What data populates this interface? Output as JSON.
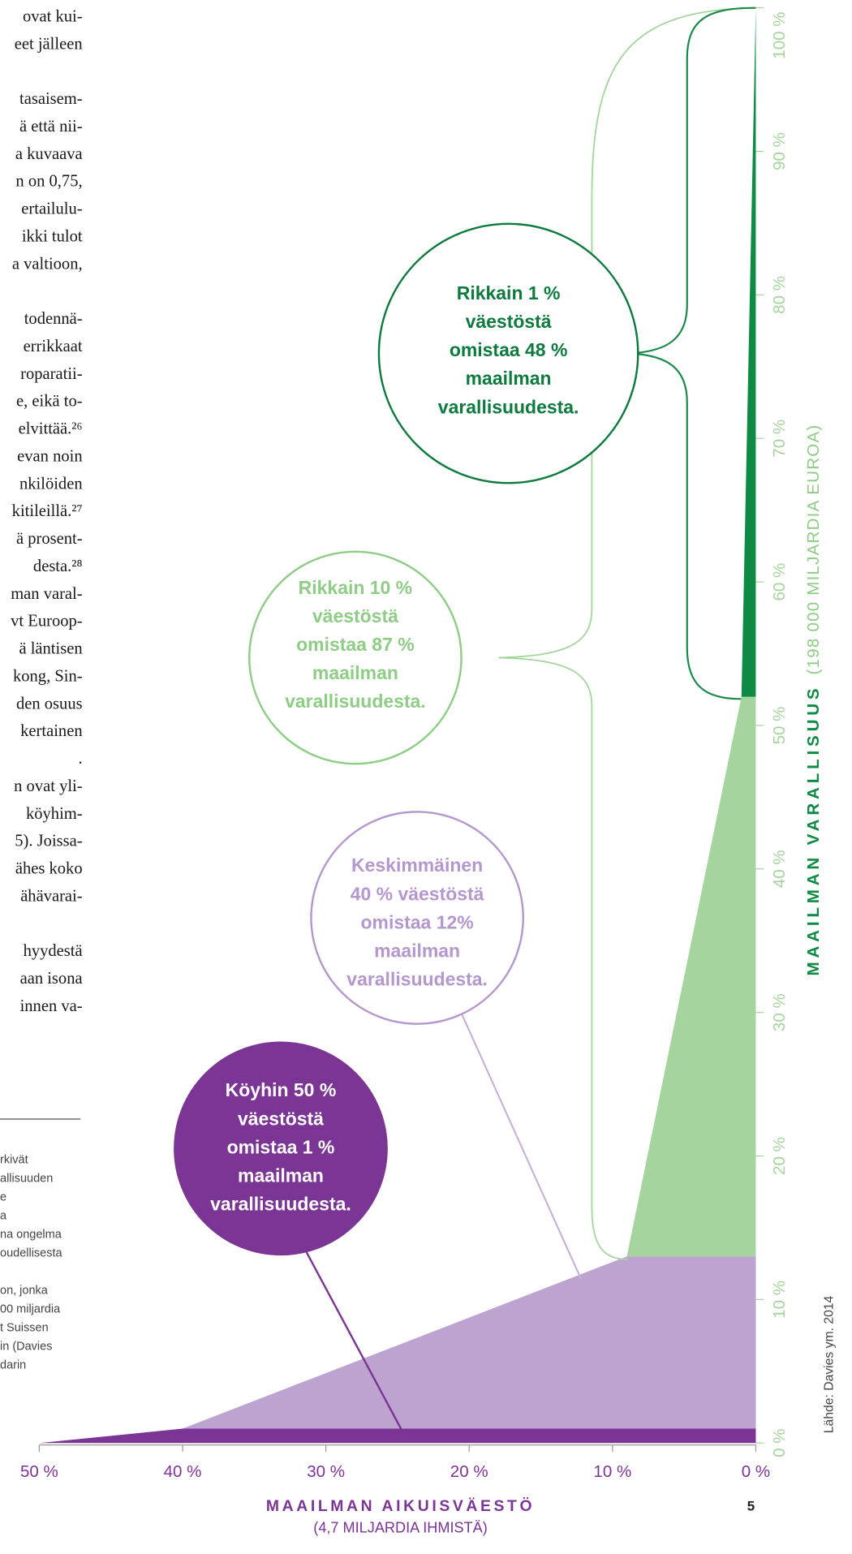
{
  "body_text": [
    [
      "ovat kui-",
      "eet jälleen"
    ],
    [
      "tasaisem-",
      "ä että nii-",
      "a kuvaava",
      "n on 0,75,",
      "ertailulu-",
      "ikki tulot",
      "a valtioon,"
    ],
    [
      "todennä-",
      "errikkaat",
      "roparatii-",
      "e, eikä to-",
      "elvittää.²⁶",
      "evan noin",
      "nkilöiden",
      "kitileillä.²⁷",
      "ä prosent-",
      "desta.²⁸",
      "man varal-",
      "vt Euroop-",
      "ä läntisen",
      "kong, Sin-",
      "den osuus",
      "kertainen",
      "."
    ],
    [
      "n ovat yli-",
      "köyhim-",
      "5). Joissa-",
      "ähes koko",
      "ähävarai-"
    ],
    [
      "hyydestä",
      "aan isona",
      "innen va-"
    ]
  ],
  "footnote_text": [
    [
      "rkivät",
      "allisuuden",
      "e",
      "a",
      "na ongelma",
      "oudellisesta"
    ],
    [
      "on, jonka",
      "00 miljardia",
      "t Suissen",
      "in (Davies",
      "darin"
    ]
  ],
  "page_number": "5",
  "source": "Lähde: Davies ym. 2014",
  "chart_data": {
    "type": "area",
    "x": [
      50,
      40,
      9,
      1,
      0
    ],
    "values": [
      0,
      1,
      13,
      52,
      100
    ],
    "band_colors": [
      "#7b3594",
      "#bda3cf",
      "#a6d49e",
      "#0e8a45"
    ],
    "xlim": [
      50,
      0
    ],
    "ylim": [
      0,
      100
    ],
    "xticks": [
      {
        "value": 50,
        "label": "50 %"
      },
      {
        "value": 40,
        "label": "40 %"
      },
      {
        "value": 30,
        "label": "30 %"
      },
      {
        "value": 20,
        "label": "20 %"
      },
      {
        "value": 10,
        "label": "10 %"
      },
      {
        "value": 0,
        "label": "0 %"
      }
    ],
    "yticks": [
      {
        "value": 0,
        "label": "0 %"
      },
      {
        "value": 10,
        "label": "10 %"
      },
      {
        "value": 20,
        "label": "20 %"
      },
      {
        "value": 30,
        "label": "30 %"
      },
      {
        "value": 40,
        "label": "40 %"
      },
      {
        "value": 50,
        "label": "50 %"
      },
      {
        "value": 60,
        "label": "60 %"
      },
      {
        "value": 70,
        "label": "70 %"
      },
      {
        "value": 80,
        "label": "80 %"
      },
      {
        "value": 90,
        "label": "90 %"
      },
      {
        "value": 100,
        "label": "100 %"
      }
    ],
    "xlabel": {
      "title": "MAAILMAN AIKUISVÄESTÖ",
      "subtitle": "(4,7 MILJARDIA IHMISTÄ)"
    },
    "ylabel": {
      "title": "MAAILMAN VARALLISUUS",
      "subtitle": "(198 000 MILJARDIA EUROA)"
    },
    "annotations": [
      {
        "heading": [
          "Rikkain 1 %",
          "väestöstä"
        ],
        "text": [
          "omistaa 48 %",
          "maailman",
          "varallisuudesta."
        ],
        "color": "#0e7a3e"
      },
      {
        "heading": [
          "Rikkain 10 %",
          "väestöstä"
        ],
        "text": [
          "omistaa 87 %",
          "maailman",
          "varallisuudesta."
        ],
        "color": "#8fcc86"
      },
      {
        "heading": [
          "Keskimmäinen",
          "40 % väestöstä"
        ],
        "text": [
          "omistaa 12%",
          "maailman",
          "varallisuudesta."
        ],
        "color": "#b497cc"
      },
      {
        "heading": [
          "Köyhin 50 %",
          "väestöstä"
        ],
        "text": [
          "omistaa 1 %",
          "maailman",
          "varallisuudesta."
        ],
        "color": "#7b3594"
      }
    ]
  }
}
